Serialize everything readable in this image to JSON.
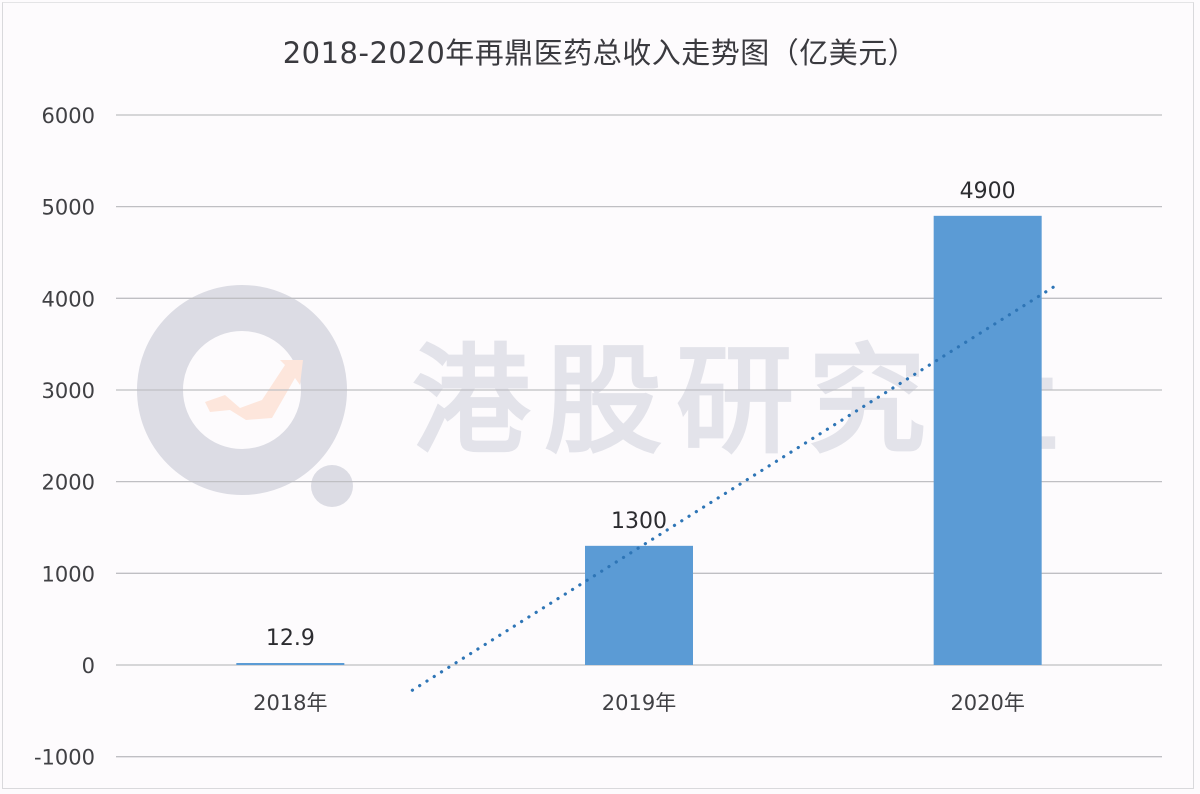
{
  "title": "2018-2020年再鼎医药总收入走势图（亿美元）",
  "watermark": {
    "text": "港股研究社",
    "icon": "magnifier-arrow-logo-icon"
  },
  "colors": {
    "bar": "#5b9bd5",
    "trendline": "#2e75b6",
    "grid": "#bfbfc3",
    "text": "#404044",
    "watermark": "#e3e3ea"
  },
  "chart_data": {
    "type": "bar",
    "title": "2018-2020年再鼎医药总收入走势图（亿美元）",
    "categories": [
      "2018年",
      "2019年",
      "2020年"
    ],
    "values": [
      12.9,
      1300,
      4900
    ],
    "data_labels": [
      "12.9",
      "1300",
      "4900"
    ],
    "xlabel": "",
    "ylabel": "",
    "ylim": [
      -1000,
      6000
    ],
    "yticks": [
      6000,
      5000,
      4000,
      3000,
      2000,
      1000,
      0,
      -1000
    ],
    "grid": true,
    "legend": "none",
    "trendline": {
      "type": "linear",
      "style": "dotted",
      "start": [
        0.85,
        -275
      ],
      "end": [
        2.7,
        4150
      ]
    }
  }
}
